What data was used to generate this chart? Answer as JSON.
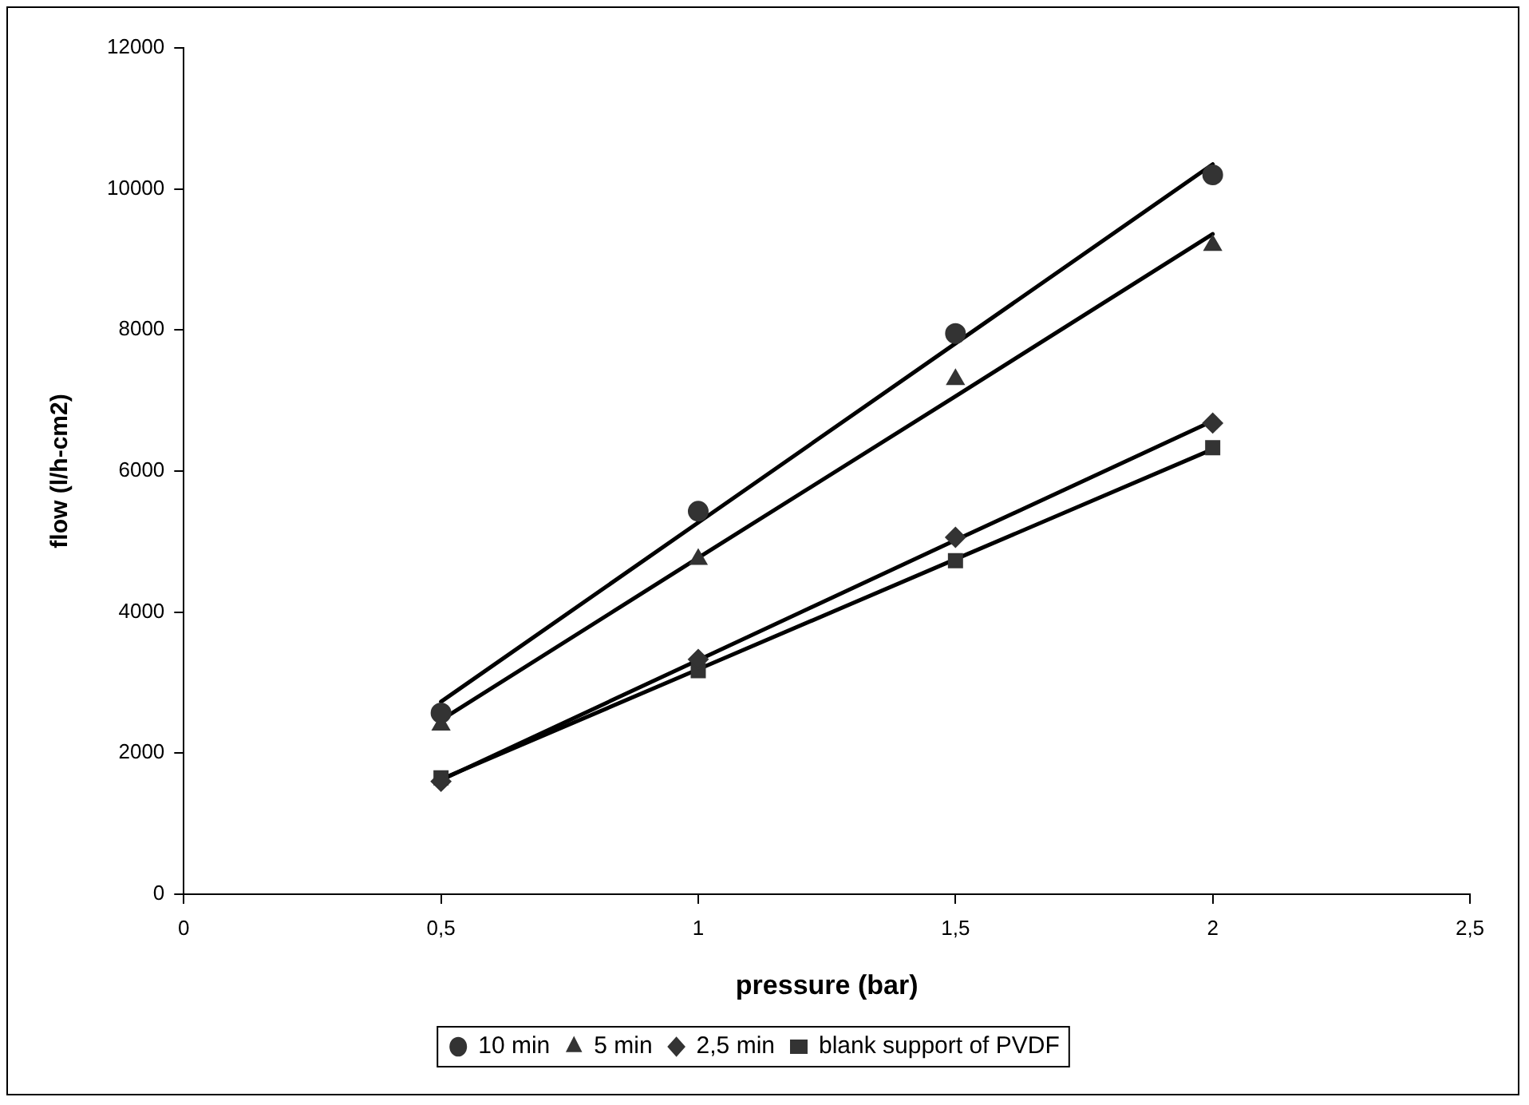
{
  "chart_data": {
    "type": "scatter",
    "xlabel": "pressure (bar)",
    "ylabel": "flow (l/h-cm2)",
    "xlim": [
      0,
      2.5
    ],
    "xticks": [
      0,
      {
        "value": 0.5,
        "label": "0,5"
      },
      1,
      {
        "value": 1.5,
        "label": "1,5"
      },
      2,
      {
        "value": 2.5,
        "label": "2,5"
      }
    ],
    "ylim": [
      0,
      12000
    ],
    "yticks": [
      0,
      2000,
      4000,
      6000,
      8000,
      10000,
      12000
    ],
    "grid": false,
    "legend": "bottom",
    "x": [
      0.5,
      1,
      1.5,
      2
    ],
    "series": [
      {
        "name": "10 min",
        "color": "#333333",
        "marker": "circle",
        "values": [
          2570,
          5430,
          7950,
          10200
        ]
      },
      {
        "name": "5 min",
        "color": "#333333",
        "marker": "triangle",
        "values": [
          2400,
          4750,
          7300,
          9200
        ]
      },
      {
        "name": "2,5 min",
        "color": "#333333",
        "marker": "diamond",
        "values": [
          1600,
          3330,
          5060,
          6680
        ]
      },
      {
        "name": "blank support of PVDF",
        "color": "#333333",
        "marker": "square",
        "values": [
          1650,
          3170,
          4730,
          6330
        ]
      },
      {
        "type": "line",
        "color": "#000000",
        "x": [
          0.5,
          1,
          1.5,
          2
        ],
        "values": [
          2730,
          5270,
          7810,
          10350
        ]
      },
      {
        "type": "line",
        "color": "#000000",
        "x": [
          0.5,
          1,
          1.5,
          2
        ],
        "values": [
          2470,
          4770,
          7060,
          9360
        ]
      },
      {
        "type": "line",
        "color": "#000000",
        "x": [
          0.5,
          1,
          1.5,
          2
        ],
        "values": [
          1620,
          3320,
          5020,
          6710
        ]
      },
      {
        "type": "line",
        "color": "#000000",
        "x": [
          0.5,
          1,
          1.5,
          2
        ],
        "values": [
          1630,
          3190,
          4750,
          6310
        ]
      }
    ]
  }
}
